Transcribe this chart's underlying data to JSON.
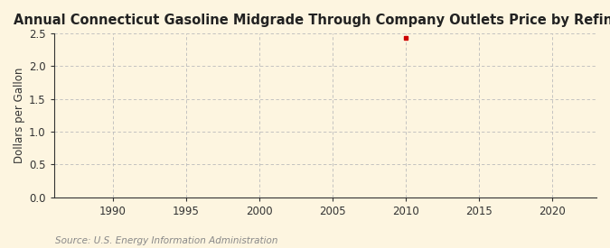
{
  "title": "Annual Connecticut Gasoline Midgrade Through Company Outlets Price by Refiners",
  "ylabel": "Dollars per Gallon",
  "source_text": "Source: U.S. Energy Information Administration",
  "xlim": [
    1986,
    2023
  ],
  "ylim": [
    0.0,
    2.5
  ],
  "xticks": [
    1990,
    1995,
    2000,
    2005,
    2010,
    2015,
    2020
  ],
  "yticks": [
    0.0,
    0.5,
    1.0,
    1.5,
    2.0,
    2.5
  ],
  "data_x": [
    2010
  ],
  "data_y": [
    2.43
  ],
  "data_color": "#cc0000",
  "background_color": "#fdf5e0",
  "plot_bg_color": "#fdf5e0",
  "grid_color": "#bbbbbb",
  "spine_color": "#333333",
  "title_fontsize": 10.5,
  "title_fontweight": "bold",
  "axis_fontsize": 8.5,
  "tick_fontsize": 8.5,
  "source_fontsize": 7.5,
  "source_color": "#888888"
}
